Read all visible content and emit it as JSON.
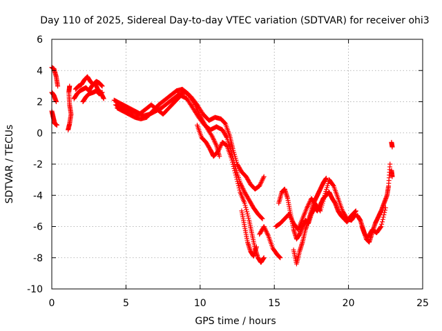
{
  "chart_data": {
    "type": "scatter",
    "title": "Day 110 of 2025, Sidereal Day-to-day VTEC variation (SDTVAR) for receiver ohi3",
    "xlabel": "GPS time / hours",
    "ylabel": "SDTVAR / TECUs",
    "xlim": [
      0,
      25
    ],
    "ylim": [
      -10,
      6
    ],
    "xticks": [
      0,
      5,
      10,
      15,
      20,
      25
    ],
    "yticks": [
      6,
      4,
      2,
      0,
      -2,
      -4,
      -6,
      -8,
      -10
    ],
    "grid": true,
    "marker": "plus",
    "series": [
      {
        "name": "SDTVAR",
        "color": "#ff0000",
        "traces": [
          [
            [
              0.0,
              4.2
            ],
            [
              0.15,
              4.1
            ],
            [
              0.3,
              3.6
            ],
            [
              0.4,
              3.0
            ]
          ],
          [
            [
              0.0,
              2.6
            ],
            [
              0.15,
              2.4
            ],
            [
              0.3,
              2.0
            ]
          ],
          [
            [
              0.0,
              1.4
            ],
            [
              0.1,
              1.0
            ],
            [
              0.2,
              0.6
            ],
            [
              0.35,
              0.5
            ]
          ],
          [
            [
              1.1,
              0.2
            ],
            [
              1.2,
              0.6
            ],
            [
              1.3,
              1.2
            ],
            [
              1.2,
              1.8
            ],
            [
              1.15,
              2.6
            ],
            [
              1.2,
              3.0
            ]
          ],
          [
            [
              1.6,
              2.8
            ],
            [
              1.8,
              3.0
            ],
            [
              2.0,
              3.1
            ],
            [
              2.2,
              3.4
            ],
            [
              2.4,
              3.6
            ],
            [
              2.6,
              3.3
            ],
            [
              2.8,
              3.1
            ],
            [
              3.0,
              3.3
            ],
            [
              3.2,
              3.2
            ],
            [
              3.4,
              3.0
            ]
          ],
          [
            [
              1.5,
              2.2
            ],
            [
              1.7,
              2.5
            ],
            [
              1.9,
              2.7
            ],
            [
              2.1,
              2.8
            ],
            [
              2.3,
              2.9
            ],
            [
              2.5,
              2.7
            ],
            [
              2.7,
              3.0
            ],
            [
              2.9,
              3.2
            ],
            [
              3.1,
              2.8
            ],
            [
              3.3,
              2.6
            ],
            [
              3.5,
              2.2
            ]
          ],
          [
            [
              2.1,
              2.0
            ],
            [
              2.3,
              2.3
            ],
            [
              2.5,
              2.5
            ],
            [
              2.8,
              2.6
            ],
            [
              3.0,
              2.7
            ],
            [
              3.2,
              2.5
            ],
            [
              3.4,
              2.6
            ]
          ],
          [
            [
              4.2,
              2.1
            ],
            [
              4.6,
              1.9
            ],
            [
              5.0,
              1.7
            ],
            [
              5.4,
              1.5
            ],
            [
              5.8,
              1.3
            ],
            [
              6.2,
              1.1
            ],
            [
              6.6,
              1.2
            ],
            [
              7.0,
              1.4
            ],
            [
              7.4,
              1.6
            ],
            [
              7.8,
              1.9
            ],
            [
              8.2,
              2.2
            ],
            [
              8.6,
              2.5
            ],
            [
              9.0,
              2.6
            ],
            [
              9.4,
              2.3
            ],
            [
              9.8,
              1.8
            ],
            [
              10.2,
              1.2
            ],
            [
              10.6,
              0.8
            ],
            [
              11.0,
              1.0
            ],
            [
              11.4,
              0.9
            ],
            [
              11.7,
              0.6
            ],
            [
              12.0,
              -0.2
            ],
            [
              12.2,
              -1.0
            ],
            [
              12.5,
              -2.0
            ],
            [
              12.8,
              -2.5
            ],
            [
              13.1,
              -2.8
            ],
            [
              13.4,
              -3.3
            ],
            [
              13.7,
              -3.6
            ],
            [
              14.0,
              -3.4
            ],
            [
              14.3,
              -2.8
            ]
          ],
          [
            [
              4.3,
              1.8
            ],
            [
              4.7,
              1.6
            ],
            [
              5.1,
              1.5
            ],
            [
              5.5,
              1.3
            ],
            [
              5.9,
              1.2
            ],
            [
              6.3,
              1.5
            ],
            [
              6.7,
              1.8
            ],
            [
              7.1,
              1.5
            ],
            [
              7.5,
              1.2
            ],
            [
              7.9,
              1.6
            ],
            [
              8.3,
              2.0
            ],
            [
              8.7,
              2.4
            ],
            [
              9.1,
              2.2
            ],
            [
              9.5,
              1.6
            ],
            [
              9.9,
              1.0
            ],
            [
              10.3,
              0.5
            ],
            [
              10.7,
              0.2
            ],
            [
              11.1,
              0.4
            ],
            [
              11.5,
              0.2
            ],
            [
              11.8,
              -0.3
            ],
            [
              12.1,
              -1.2
            ],
            [
              12.4,
              -2.3
            ],
            [
              12.7,
              -3.2
            ],
            [
              13.0,
              -3.8
            ],
            [
              13.3,
              -4.3
            ],
            [
              13.6,
              -4.8
            ],
            [
              13.9,
              -5.2
            ],
            [
              14.2,
              -5.5
            ]
          ],
          [
            [
              4.4,
              1.6
            ],
            [
              4.8,
              1.4
            ],
            [
              5.2,
              1.2
            ],
            [
              5.6,
              1.0
            ],
            [
              6.0,
              0.9
            ],
            [
              6.4,
              1.0
            ],
            [
              6.8,
              1.4
            ],
            [
              7.2,
              1.8
            ],
            [
              7.6,
              2.1
            ],
            [
              8.0,
              2.4
            ],
            [
              8.4,
              2.7
            ],
            [
              8.8,
              2.8
            ],
            [
              9.2,
              2.5
            ],
            [
              9.6,
              1.9
            ],
            [
              10.0,
              1.1
            ],
            [
              10.4,
              0.4
            ],
            [
              10.8,
              -0.2
            ],
            [
              11.1,
              -0.8
            ],
            [
              11.3,
              -1.5
            ]
          ],
          [
            [
              9.8,
              0.5
            ],
            [
              10.1,
              -0.3
            ],
            [
              10.4,
              -0.6
            ],
            [
              10.7,
              -1.1
            ],
            [
              10.9,
              -1.5
            ],
            [
              11.2,
              -1.2
            ],
            [
              11.5,
              -0.6
            ],
            [
              11.8,
              -0.8
            ],
            [
              12.1,
              -1.6
            ],
            [
              12.4,
              -2.7
            ],
            [
              12.7,
              -3.8
            ],
            [
              13.0,
              -4.5
            ],
            [
              13.3,
              -5.6
            ],
            [
              13.5,
              -6.5
            ],
            [
              13.7,
              -7.4
            ],
            [
              13.9,
              -8.0
            ],
            [
              14.1,
              -8.3
            ],
            [
              14.3,
              -8.0
            ]
          ],
          [
            [
              12.8,
              -5.0
            ],
            [
              13.0,
              -6.0
            ],
            [
              13.2,
              -7.0
            ],
            [
              13.4,
              -7.6
            ],
            [
              13.6,
              -7.9
            ],
            [
              13.8,
              -7.3
            ]
          ],
          [
            [
              14.0,
              -6.5
            ],
            [
              14.3,
              -6.0
            ],
            [
              14.6,
              -6.6
            ],
            [
              14.9,
              -7.4
            ],
            [
              15.2,
              -7.8
            ],
            [
              15.4,
              -8.0
            ]
          ],
          [
            [
              15.3,
              -4.5
            ],
            [
              15.5,
              -3.8
            ],
            [
              15.7,
              -3.6
            ],
            [
              15.9,
              -4.2
            ],
            [
              16.1,
              -5.2
            ],
            [
              16.3,
              -6.2
            ],
            [
              16.5,
              -6.8
            ],
            [
              16.7,
              -6.5
            ],
            [
              16.9,
              -6.0
            ],
            [
              17.1,
              -5.6
            ],
            [
              17.3,
              -5.8
            ],
            [
              17.5,
              -5.2
            ],
            [
              17.7,
              -4.8
            ],
            [
              17.9,
              -5.0
            ],
            [
              18.1,
              -4.6
            ],
            [
              18.3,
              -4.2
            ],
            [
              18.5,
              -4.0
            ],
            [
              18.7,
              -3.8
            ],
            [
              18.9,
              -4.2
            ],
            [
              19.1,
              -4.5
            ],
            [
              19.3,
              -5.0
            ],
            [
              19.5,
              -5.3
            ],
            [
              19.7,
              -5.5
            ],
            [
              19.9,
              -5.7
            ],
            [
              20.1,
              -5.4
            ],
            [
              20.3,
              -5.2
            ],
            [
              20.5,
              -5.0
            ]
          ],
          [
            [
              15.1,
              -6.0
            ],
            [
              15.4,
              -5.8
            ],
            [
              15.7,
              -5.5
            ],
            [
              16.0,
              -5.2
            ],
            [
              16.3,
              -5.8
            ],
            [
              16.6,
              -6.2
            ],
            [
              16.9,
              -5.5
            ],
            [
              17.2,
              -4.8
            ],
            [
              17.5,
              -4.2
            ],
            [
              17.8,
              -4.6
            ],
            [
              18.1,
              -5.0
            ],
            [
              18.4,
              -4.0
            ],
            [
              18.7,
              -3.0
            ],
            [
              19.0,
              -3.4
            ],
            [
              19.3,
              -4.2
            ],
            [
              19.6,
              -5.0
            ],
            [
              19.9,
              -5.5
            ],
            [
              20.2,
              -5.6
            ],
            [
              20.5,
              -5.2
            ]
          ],
          [
            [
              16.3,
              -7.5
            ],
            [
              16.5,
              -8.4
            ],
            [
              16.7,
              -7.6
            ],
            [
              16.9,
              -7.0
            ],
            [
              17.1,
              -6.2
            ],
            [
              17.3,
              -5.6
            ],
            [
              17.5,
              -5.0
            ],
            [
              17.7,
              -4.4
            ],
            [
              17.9,
              -4.0
            ],
            [
              18.1,
              -3.6
            ],
            [
              18.3,
              -3.2
            ],
            [
              18.5,
              -2.9
            ]
          ],
          [
            [
              20.6,
              -5.3
            ],
            [
              20.8,
              -5.6
            ],
            [
              21.0,
              -6.2
            ],
            [
              21.2,
              -6.8
            ],
            [
              21.4,
              -7.0
            ],
            [
              21.6,
              -6.4
            ],
            [
              21.8,
              -5.8
            ],
            [
              22.0,
              -5.4
            ],
            [
              22.2,
              -5.0
            ],
            [
              22.4,
              -4.5
            ],
            [
              22.6,
              -4.0
            ],
            [
              22.7,
              -3.4
            ],
            [
              22.8,
              -2.0
            ]
          ],
          [
            [
              20.9,
              -6.0
            ],
            [
              21.1,
              -6.5
            ],
            [
              21.3,
              -6.7
            ],
            [
              21.6,
              -6.2
            ],
            [
              21.9,
              -6.4
            ],
            [
              22.2,
              -6.0
            ],
            [
              22.5,
              -4.8
            ]
          ],
          [
            [
              22.9,
              -2.4
            ],
            [
              22.95,
              -2.8
            ]
          ],
          [
            [
              22.9,
              -0.6
            ],
            [
              22.95,
              -0.9
            ]
          ]
        ]
      }
    ]
  }
}
